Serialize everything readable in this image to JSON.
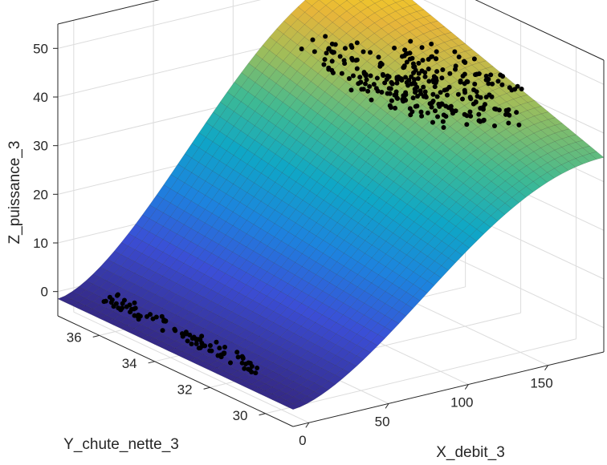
{
  "chart_data": {
    "type": "surface",
    "title": "",
    "xlabel": "X_debit_3",
    "ylabel": "Y_chute_nette_3",
    "zlabel": "Z_puissance_3",
    "xlim": [
      -10,
      185
    ],
    "ylim": [
      29,
      37.5
    ],
    "zlim": [
      -5,
      55
    ],
    "x_ticks": [
      0,
      50,
      100,
      150
    ],
    "y_ticks": [
      30,
      32,
      34,
      36
    ],
    "z_ticks": [
      0,
      10,
      20,
      30,
      40,
      50
    ],
    "grid": true,
    "colormap": "parula",
    "surface": {
      "description_points": [
        {
          "x": 0,
          "y": 37.5,
          "z": -1.5
        },
        {
          "x": 0,
          "y": 29,
          "z": -1.5
        },
        {
          "x": 185,
          "y": 37.5,
          "z": 52
        },
        {
          "x": 185,
          "y": 29,
          "z": 35
        }
      ]
    },
    "scatter_clusters": [
      {
        "x_range": [
          0,
          8
        ],
        "y_range": [
          31,
          36.5
        ],
        "z_range": [
          -1,
          1
        ]
      },
      {
        "x_range": [
          115,
          135
        ],
        "y_range": [
          31,
          36
        ],
        "z_range": [
          40,
          47
        ]
      },
      {
        "x_range": [
          150,
          172
        ],
        "y_range": [
          31,
          35
        ],
        "z_range": [
          37,
          46
        ]
      }
    ]
  }
}
